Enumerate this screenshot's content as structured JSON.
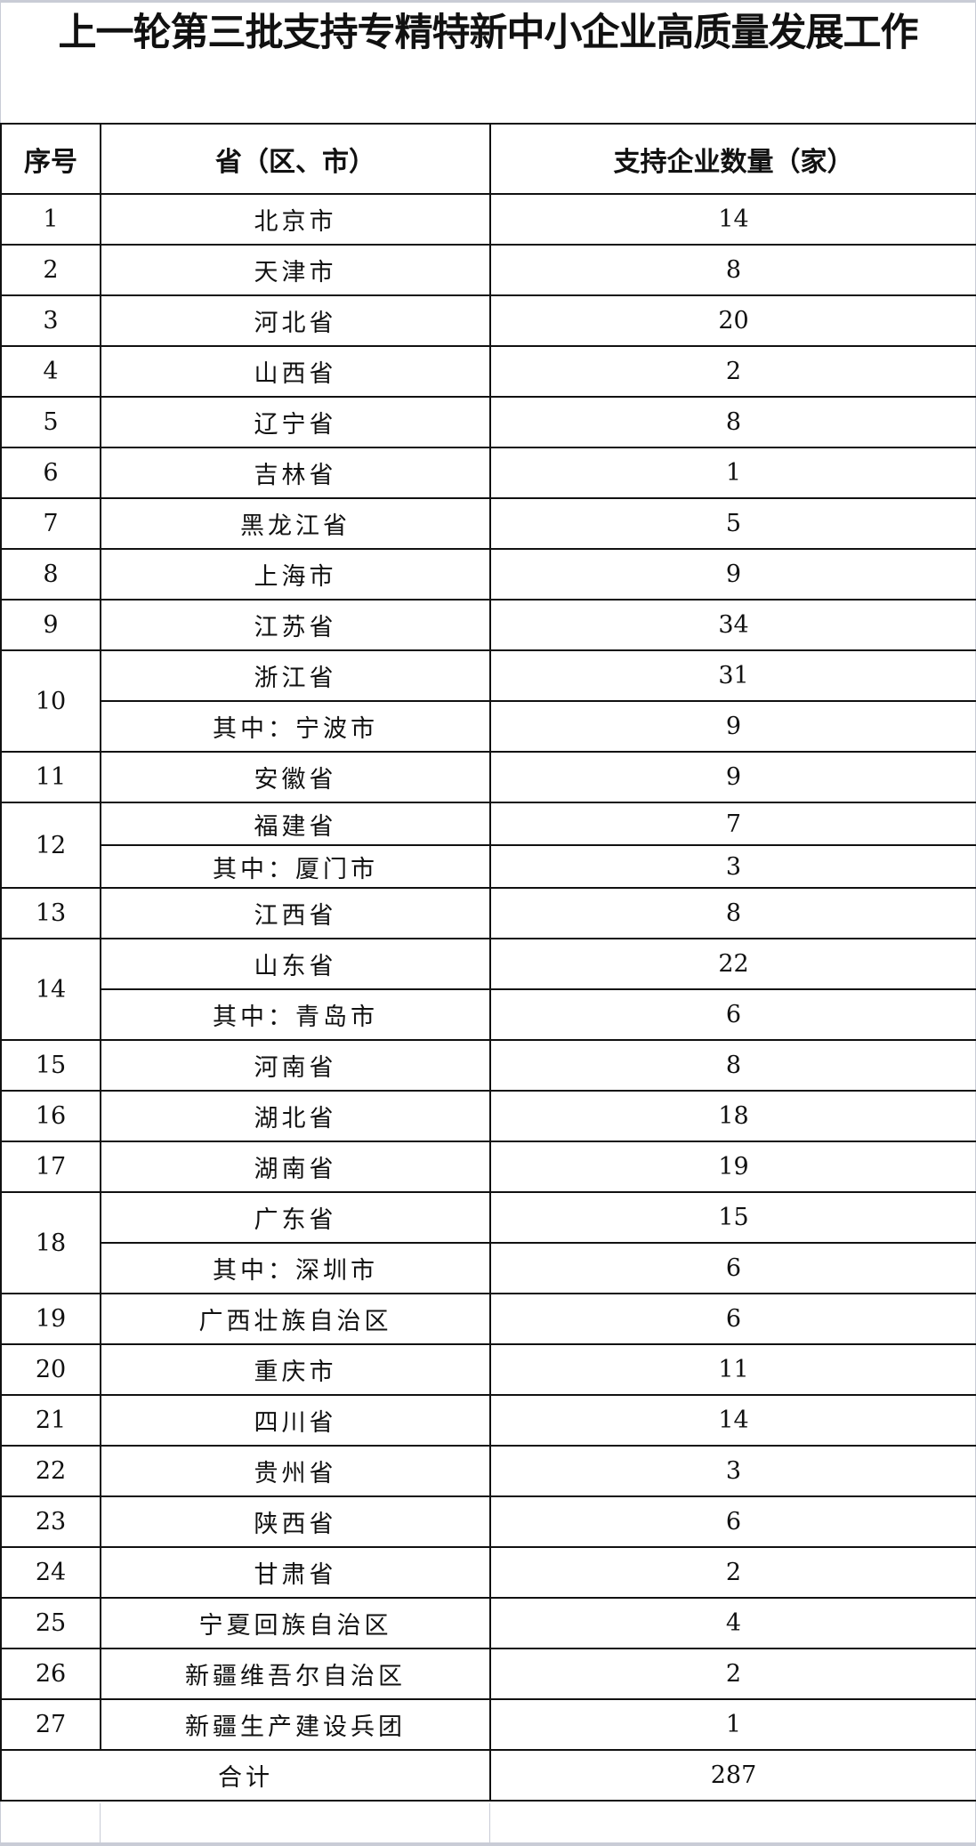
{
  "title": "上一轮第三批支持专精特新中小企业高质量发展工作",
  "headers": [
    "序号",
    "省（区、市）",
    "支持企业数量（家）"
  ],
  "rows": [
    {
      "no": "1",
      "entries": [
        {
          "name": "北京市",
          "count": "14"
        }
      ]
    },
    {
      "no": "2",
      "entries": [
        {
          "name": "天津市",
          "count": "8"
        }
      ]
    },
    {
      "no": "3",
      "entries": [
        {
          "name": "河北省",
          "count": "20"
        }
      ]
    },
    {
      "no": "4",
      "entries": [
        {
          "name": "山西省",
          "count": "2"
        }
      ]
    },
    {
      "no": "5",
      "entries": [
        {
          "name": "辽宁省",
          "count": "8"
        }
      ]
    },
    {
      "no": "6",
      "entries": [
        {
          "name": "吉林省",
          "count": "1"
        }
      ]
    },
    {
      "no": "7",
      "entries": [
        {
          "name": "黑龙江省",
          "count": "5"
        }
      ]
    },
    {
      "no": "8",
      "entries": [
        {
          "name": "上海市",
          "count": "9"
        }
      ]
    },
    {
      "no": "9",
      "entries": [
        {
          "name": "江苏省",
          "count": "34"
        }
      ]
    },
    {
      "no": "10",
      "entries": [
        {
          "name": "浙江省",
          "count": "31"
        },
        {
          "name": "其中：宁波市",
          "count": "9"
        }
      ]
    },
    {
      "no": "11",
      "entries": [
        {
          "name": "安徽省",
          "count": "9"
        }
      ]
    },
    {
      "no": "12",
      "small": true,
      "entries": [
        {
          "name": "福建省",
          "count": "7"
        },
        {
          "name": "其中：厦门市",
          "count": "3"
        }
      ]
    },
    {
      "no": "13",
      "entries": [
        {
          "name": "江西省",
          "count": "8"
        }
      ]
    },
    {
      "no": "14",
      "entries": [
        {
          "name": "山东省",
          "count": "22"
        },
        {
          "name": "其中：青岛市",
          "count": "6"
        }
      ]
    },
    {
      "no": "15",
      "entries": [
        {
          "name": "河南省",
          "count": "8"
        }
      ]
    },
    {
      "no": "16",
      "entries": [
        {
          "name": "湖北省",
          "count": "18"
        }
      ]
    },
    {
      "no": "17",
      "entries": [
        {
          "name": "湖南省",
          "count": "19"
        }
      ]
    },
    {
      "no": "18",
      "entries": [
        {
          "name": "广东省",
          "count": "15"
        },
        {
          "name": "其中：深圳市",
          "count": "6"
        }
      ]
    },
    {
      "no": "19",
      "entries": [
        {
          "name": "广西壮族自治区",
          "count": "6"
        }
      ]
    },
    {
      "no": "20",
      "entries": [
        {
          "name": "重庆市",
          "count": "11"
        }
      ]
    },
    {
      "no": "21",
      "entries": [
        {
          "name": "四川省",
          "count": "14"
        }
      ]
    },
    {
      "no": "22",
      "entries": [
        {
          "name": "贵州省",
          "count": "3"
        }
      ]
    },
    {
      "no": "23",
      "entries": [
        {
          "name": "陕西省",
          "count": "6"
        }
      ]
    },
    {
      "no": "24",
      "entries": [
        {
          "name": "甘肃省",
          "count": "2"
        }
      ]
    },
    {
      "no": "25",
      "entries": [
        {
          "name": "宁夏回族自治区",
          "count": "4"
        }
      ]
    },
    {
      "no": "26",
      "entries": [
        {
          "name": "新疆维吾尔自治区",
          "count": "2"
        }
      ]
    },
    {
      "no": "27",
      "entries": [
        {
          "name": "新疆生产建设兵团",
          "count": "1"
        }
      ]
    }
  ],
  "total": {
    "label": "合计",
    "count": "287"
  }
}
